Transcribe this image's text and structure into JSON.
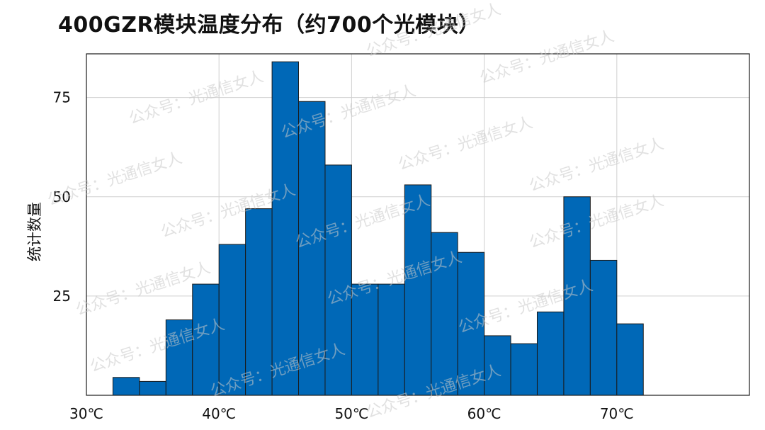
{
  "chart_data": {
    "type": "bar",
    "title": "400GZR模块温度分布（约700个光模块）",
    "ylabel": "统计数量",
    "xlabel": "",
    "bin_edges": [
      32,
      34,
      36,
      38,
      40,
      42,
      44,
      46,
      48,
      50,
      52,
      54,
      56,
      58,
      60,
      62,
      64,
      66,
      68,
      70,
      72
    ],
    "values": [
      4.5,
      3.5,
      19,
      28,
      38,
      47,
      84,
      74,
      58,
      28,
      28,
      53,
      41,
      36,
      15,
      13,
      21,
      50,
      34,
      18
    ],
    "xlim": [
      30,
      80
    ],
    "ylim": [
      0,
      86
    ],
    "x_ticks": [
      30,
      40,
      50,
      60,
      70
    ],
    "x_tick_labels": [
      "30℃",
      "40℃",
      "50℃",
      "60℃",
      "70℃"
    ],
    "y_ticks": [
      25,
      50,
      75
    ],
    "y_tick_labels": [
      "25",
      "50",
      "75"
    ],
    "grid": true,
    "bar_color": "#0068b7",
    "bar_edge_color": "#1a1a1a",
    "watermark_text": "公众号：光通信女人"
  }
}
